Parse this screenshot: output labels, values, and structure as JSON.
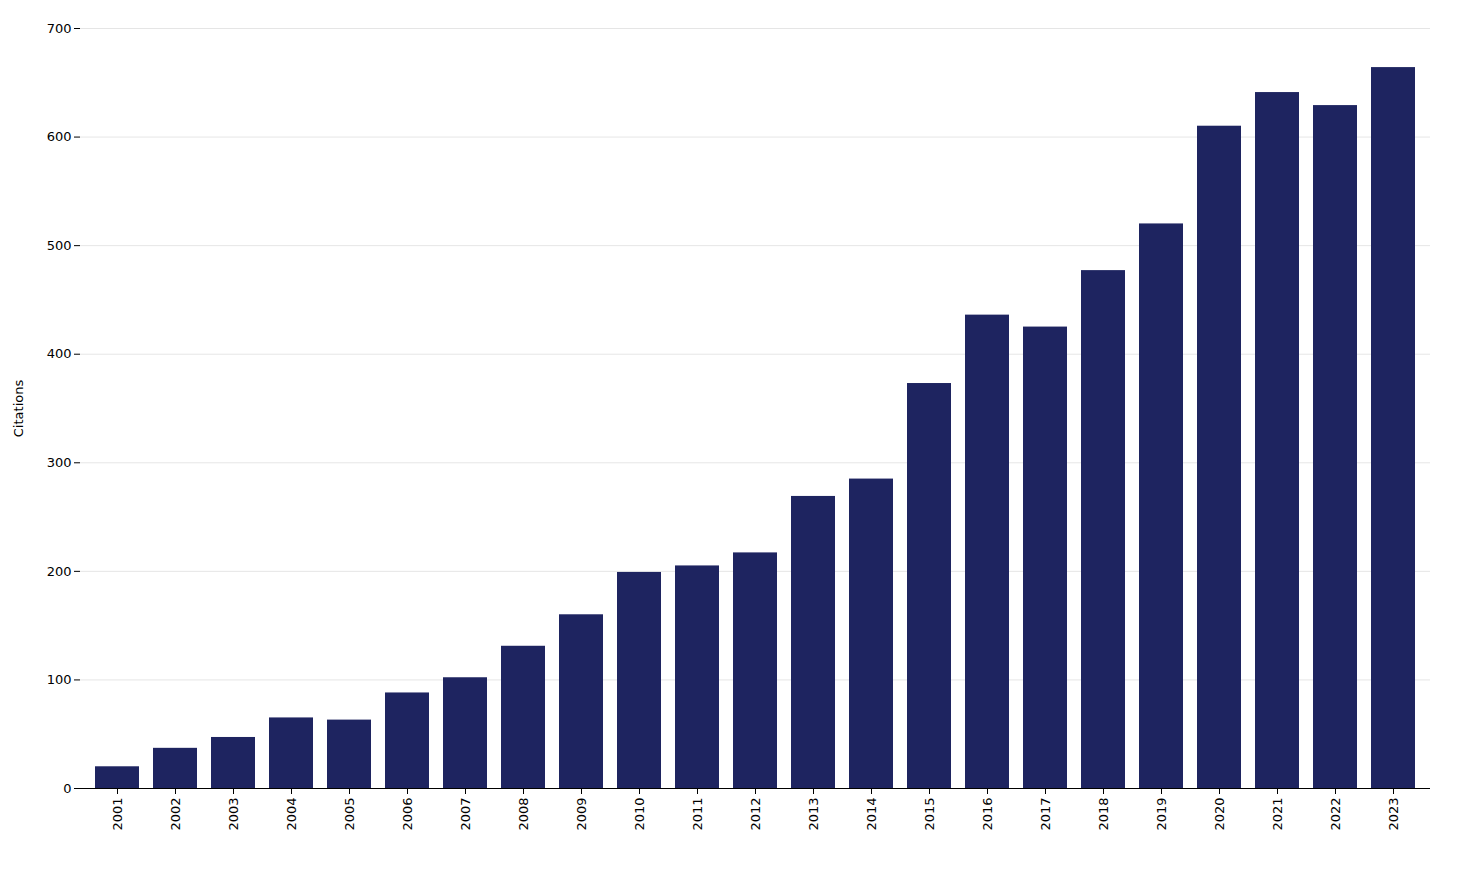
{
  "chart_data": {
    "type": "bar",
    "ylabel": "Citations",
    "categories": [
      "2001",
      "2002",
      "2003",
      "2004",
      "2005",
      "2006",
      "2007",
      "2008",
      "2009",
      "2010",
      "2011",
      "2012",
      "2013",
      "2014",
      "2015",
      "2016",
      "2017",
      "2018",
      "2019",
      "2020",
      "2021",
      "2022",
      "2023"
    ],
    "values": [
      20,
      37,
      47,
      65,
      63,
      88,
      102,
      131,
      160,
      199,
      205,
      217,
      269,
      285,
      373,
      436,
      425,
      477,
      520,
      610,
      641,
      629,
      664
    ],
    "color": "#1e2460",
    "ylim": [
      0,
      700
    ],
    "yticks": [
      0,
      100,
      200,
      300,
      400,
      500,
      600,
      700
    ],
    "grid": true
  }
}
